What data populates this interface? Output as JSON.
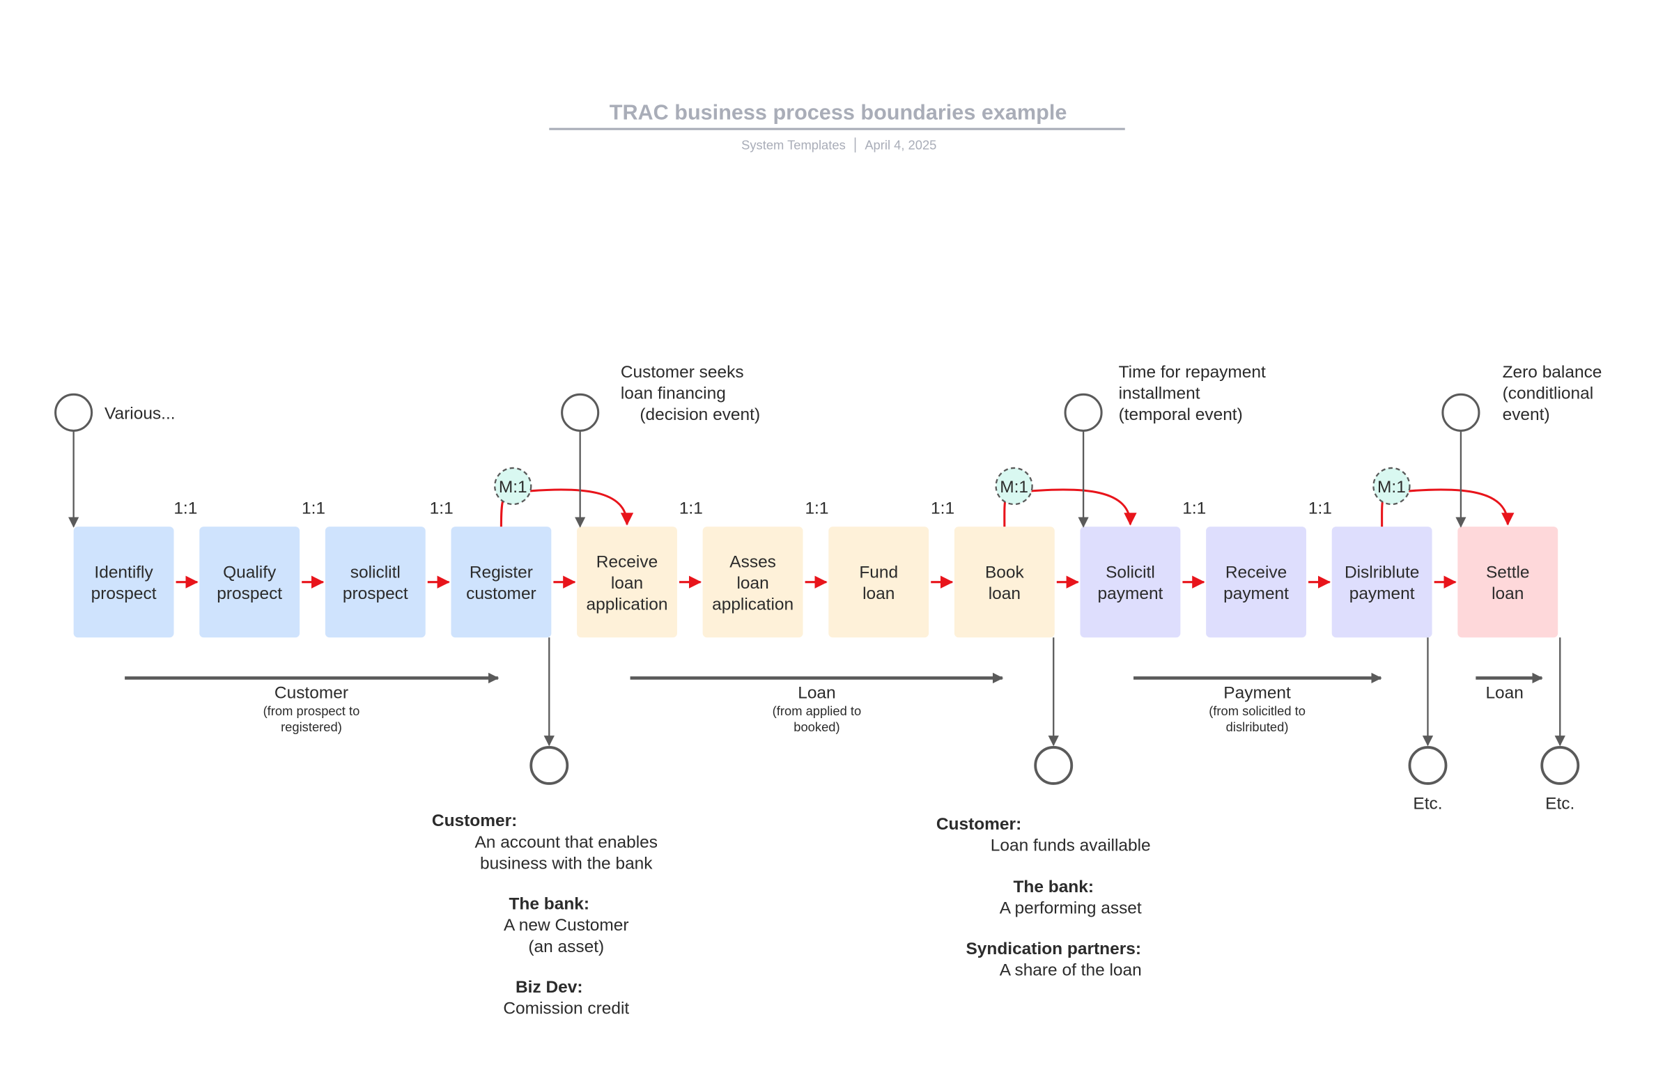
{
  "title": "TRAC business process boundaries example",
  "subtitle": {
    "source": "System Templates",
    "separator": "|",
    "date": "April 4, 2025"
  },
  "colors": {
    "customer": "#cfe3fd",
    "loan": "#fef1d9",
    "payment": "#dedefd",
    "settle": "#fed8da",
    "flow": "#e8141b",
    "line": "#5a5a5a",
    "m1": "#d9f8f1"
  },
  "steps": [
    {
      "lines": [
        "Identifly",
        "prospect"
      ]
    },
    {
      "lines": [
        "Qualify",
        "prospect"
      ]
    },
    {
      "lines": [
        "soliclitl",
        "prospect"
      ]
    },
    {
      "lines": [
        "Register",
        "customer"
      ]
    },
    {
      "lines": [
        "Receive",
        "loan",
        "application"
      ]
    },
    {
      "lines": [
        "Asses",
        "loan",
        "application"
      ]
    },
    {
      "lines": [
        "Fund",
        "loan"
      ]
    },
    {
      "lines": [
        "Book",
        "loan"
      ]
    },
    {
      "lines": [
        "Solicitl",
        "payment"
      ]
    },
    {
      "lines": [
        "Receive",
        "payment"
      ]
    },
    {
      "lines": [
        "Dislriblute",
        "payment"
      ]
    },
    {
      "lines": [
        "Settle",
        "loan"
      ]
    }
  ],
  "ratios": [
    "1:1",
    "1:1",
    "1:1",
    "1:1",
    "1:1",
    "1:1",
    "1:1",
    "1:1"
  ],
  "m1_label": "M:1",
  "events": [
    {
      "lines": [
        "Various..."
      ]
    },
    {
      "lines": [
        "Customer seeks",
        "loan financing",
        "(decision event)"
      ]
    },
    {
      "lines": [
        "Time for repayment",
        "installment",
        "(temporal event)"
      ]
    },
    {
      "lines": [
        "Zero balance",
        "(conditlional",
        "event)"
      ]
    }
  ],
  "boundaries": [
    {
      "label": "Customer",
      "sub": [
        "(from prospect to",
        "registered)"
      ]
    },
    {
      "label": "Loan",
      "sub": [
        "(from applied to",
        "booked)"
      ]
    },
    {
      "label": "Payment",
      "sub": [
        "(from solicitled to",
        "dislributed)"
      ]
    },
    {
      "label": "Loan",
      "sub": []
    }
  ],
  "outcomes": {
    "customer": [
      {
        "head": "Customer:",
        "lines": [
          "An account that enables",
          "business with the bank"
        ]
      },
      {
        "head": "The bank:",
        "lines": [
          "A new Customer",
          "(an  asset)"
        ]
      },
      {
        "head": "Biz Dev:",
        "lines": [
          "Comission credit"
        ]
      }
    ],
    "loan": [
      {
        "head": "Customer:",
        "lines": [
          "Loan funds availlable"
        ]
      },
      {
        "head": "The bank:",
        "lines": [
          "A performing asset"
        ]
      },
      {
        "head": "Syndication partners:",
        "lines": [
          "A share of the loan"
        ]
      }
    ],
    "etc": [
      "Etc.",
      "Etc."
    ]
  }
}
